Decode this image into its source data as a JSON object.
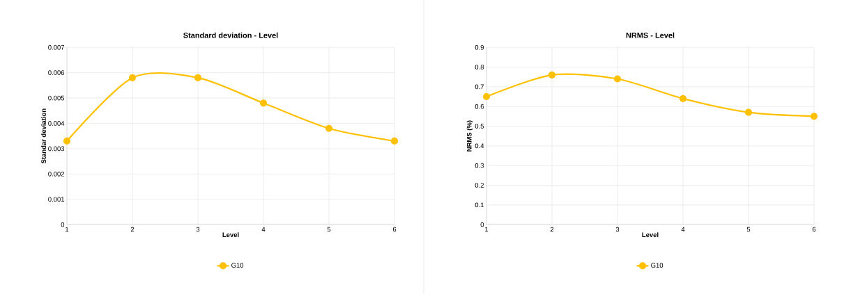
{
  "chart_data": [
    {
      "type": "line",
      "title": "Standard deviation - Level",
      "xlabel": "Level",
      "ylabel": "Standar deviation",
      "categories": [
        "1",
        "2",
        "3",
        "4",
        "5",
        "6"
      ],
      "series": [
        {
          "name": "G10",
          "color": "#ffc000",
          "values": [
            0.0033,
            0.0058,
            0.0058,
            0.0048,
            0.0038,
            0.0033
          ]
        }
      ],
      "ylim": [
        0,
        0.007
      ],
      "yticks": [
        0,
        0.001,
        0.002,
        0.003,
        0.004,
        0.005,
        0.006,
        0.007
      ],
      "grid": true,
      "legend": "bottom",
      "marker": "circle",
      "line_style": "solid"
    },
    {
      "type": "line",
      "title": "NRMS - Level",
      "xlabel": "Level",
      "ylabel": "NRMS (%)",
      "categories": [
        "1",
        "2",
        "3",
        "4",
        "5",
        "6"
      ],
      "series": [
        {
          "name": "G10",
          "color": "#ffc000",
          "values": [
            0.65,
            0.76,
            0.74,
            0.64,
            0.57,
            0.55
          ]
        }
      ],
      "ylim": [
        0,
        0.9
      ],
      "yticks": [
        0,
        0.1,
        0.2,
        0.3,
        0.4,
        0.5,
        0.6,
        0.7,
        0.8,
        0.9
      ],
      "grid": true,
      "legend": "bottom",
      "marker": "circle",
      "line_style": "solid"
    }
  ]
}
